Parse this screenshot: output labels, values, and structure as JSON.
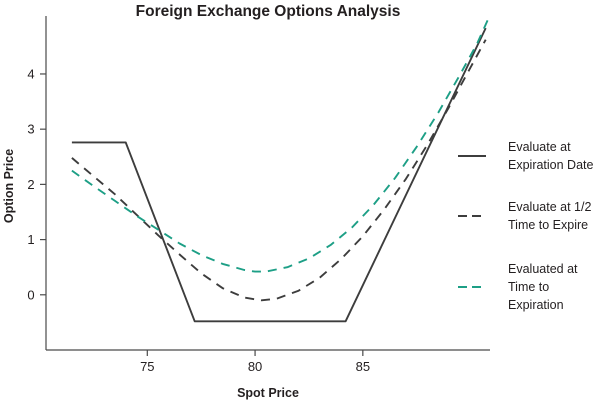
{
  "chart_data": {
    "type": "line",
    "title": "Foreign Exchange Options Analysis",
    "xlabel": "Spot Price",
    "ylabel": "Option Price",
    "xlim": [
      70.3,
      90.9
    ],
    "ylim": [
      -1.0,
      5.05
    ],
    "xticks": [
      75,
      80,
      85
    ],
    "yticks": [
      0,
      1,
      2,
      3,
      4
    ],
    "xtick_labels": [
      "75",
      "80",
      "85"
    ],
    "ytick_labels": [
      "0",
      "1",
      "2",
      "3",
      "4"
    ],
    "grid": false,
    "legend_position": "right",
    "series": [
      {
        "name": "Evaluate at Expiration Date",
        "legend_lines": [
          "Evaluate at",
          "Expiration Date"
        ],
        "style": "solid",
        "color": "#3d3d3d",
        "points": [
          [
            71.5,
            2.76
          ],
          [
            74.0,
            2.76
          ],
          [
            77.2,
            -0.48
          ],
          [
            84.2,
            -0.48
          ],
          [
            90.7,
            4.83
          ]
        ]
      },
      {
        "name": "Evaluate at 1/2 Time to Expire",
        "legend_lines": [
          "Evaluate at 1/2",
          "Time to Expire"
        ],
        "style": "dashed",
        "color": "#3d3d3d",
        "points": [
          [
            71.5,
            2.48
          ],
          [
            72.5,
            2.15
          ],
          [
            73.5,
            1.82
          ],
          [
            74.5,
            1.45
          ],
          [
            75.5,
            1.08
          ],
          [
            76.5,
            0.73
          ],
          [
            77.5,
            0.39
          ],
          [
            78.5,
            0.12
          ],
          [
            79.5,
            -0.05
          ],
          [
            80.3,
            -0.1
          ],
          [
            81.0,
            -0.07
          ],
          [
            82.0,
            0.07
          ],
          [
            83.0,
            0.31
          ],
          [
            84.0,
            0.65
          ],
          [
            85.0,
            1.06
          ],
          [
            86.0,
            1.55
          ],
          [
            87.0,
            2.1
          ],
          [
            88.0,
            2.72
          ],
          [
            89.0,
            3.4
          ],
          [
            90.0,
            4.12
          ],
          [
            90.7,
            4.62
          ]
        ]
      },
      {
        "name": "Evaluated at Time to Expiration",
        "legend_lines": [
          "Evaluated at",
          "Time to",
          "Expiration"
        ],
        "style": "dashed",
        "color": "#1d9f86",
        "points": [
          [
            71.5,
            2.25
          ],
          [
            72.5,
            1.97
          ],
          [
            73.5,
            1.7
          ],
          [
            74.5,
            1.43
          ],
          [
            75.5,
            1.18
          ],
          [
            76.5,
            0.93
          ],
          [
            77.5,
            0.72
          ],
          [
            78.5,
            0.56
          ],
          [
            79.5,
            0.45
          ],
          [
            80.0,
            0.42
          ],
          [
            80.5,
            0.42
          ],
          [
            81.5,
            0.5
          ],
          [
            82.5,
            0.66
          ],
          [
            83.5,
            0.9
          ],
          [
            84.5,
            1.22
          ],
          [
            85.5,
            1.63
          ],
          [
            86.5,
            2.12
          ],
          [
            87.5,
            2.68
          ],
          [
            88.5,
            3.3
          ],
          [
            89.5,
            3.98
          ],
          [
            90.3,
            4.55
          ],
          [
            90.8,
            4.98
          ]
        ]
      }
    ]
  }
}
